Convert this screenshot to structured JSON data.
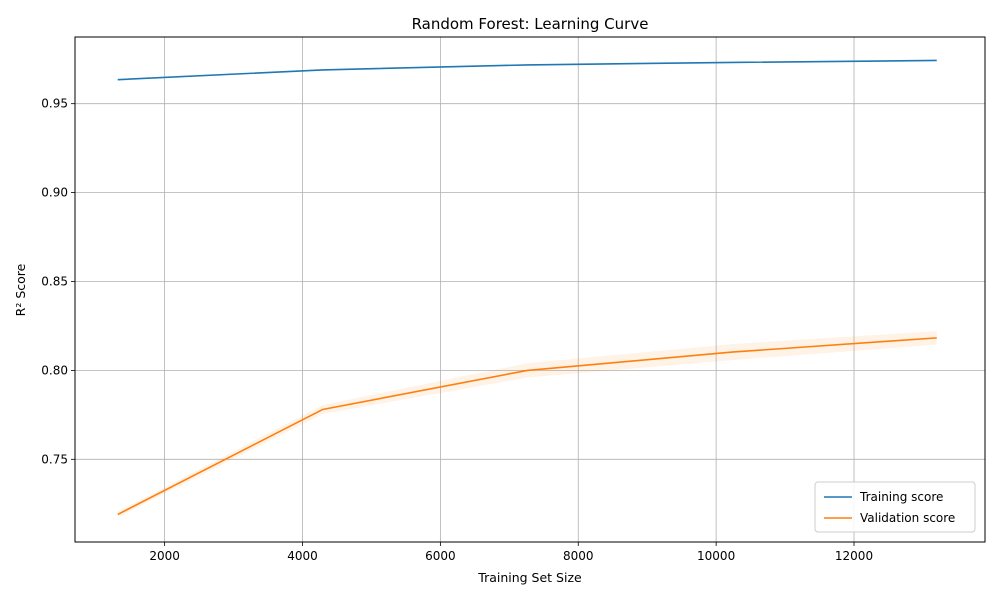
{
  "chart_data": {
    "type": "line",
    "title": "Random Forest: Learning Curve",
    "xlabel": "Training Set Size",
    "ylabel": "R² Score",
    "xlim": [
      700,
      13900
    ],
    "ylim": [
      0.7035,
      0.9875
    ],
    "xticks": [
      2000,
      4000,
      6000,
      8000,
      10000,
      12000
    ],
    "yticks": [
      0.75,
      0.8,
      0.85,
      0.9,
      0.95
    ],
    "ytick_labels": [
      "0.75",
      "0.80",
      "0.85",
      "0.90",
      "0.95"
    ],
    "grid": true,
    "legend_position": "lower-right",
    "x": [
      1320,
      4290,
      7260,
      10230,
      13200
    ],
    "series": [
      {
        "name": "Training score",
        "color": "#1f77b4",
        "values": [
          0.9635,
          0.969,
          0.9718,
          0.9732,
          0.9743
        ],
        "band_lower": [
          0.9633,
          0.9688,
          0.9716,
          0.973,
          0.9741
        ],
        "band_upper": [
          0.9637,
          0.9692,
          0.972,
          0.9734,
          0.9745
        ]
      },
      {
        "name": "Validation score",
        "color": "#ff7f0e",
        "values": [
          0.719,
          0.778,
          0.8,
          0.8103,
          0.8183
        ],
        "band_lower": [
          0.7175,
          0.7755,
          0.796,
          0.8058,
          0.8145
        ],
        "band_upper": [
          0.7205,
          0.7805,
          0.804,
          0.8148,
          0.8221
        ]
      }
    ]
  }
}
